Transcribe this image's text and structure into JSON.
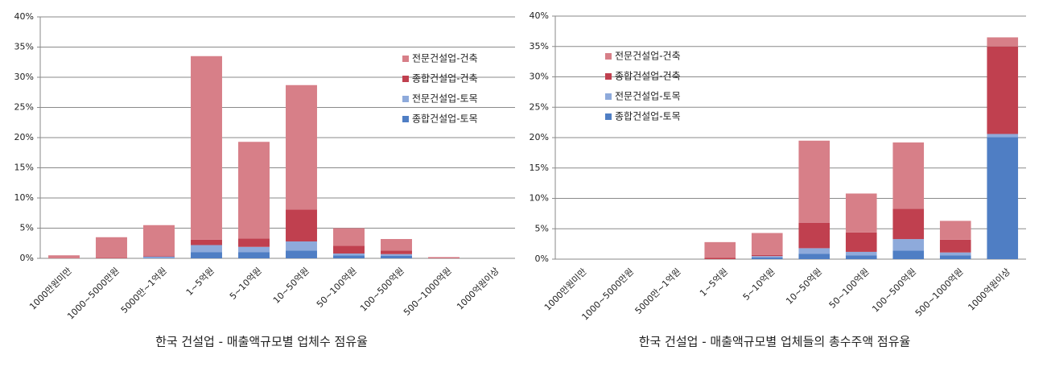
{
  "chart_data": [
    {
      "type": "stacked-bar",
      "title": "한국 건설업 - 매출액규모별 업체수 점유율",
      "categories": [
        "1000만원미만",
        "1000~5000만원",
        "5000만~1억원",
        "1~5억원",
        "5~10억원",
        "10~50억원",
        "50~100억원",
        "100~500억원",
        "500~1000억원",
        "1000억원이상"
      ],
      "series": [
        {
          "name": "종합건설업-토목",
          "color": "#4f7ec4",
          "values": [
            0,
            0,
            0.1,
            1.0,
            1.0,
            1.3,
            0.5,
            0.4,
            0,
            0
          ]
        },
        {
          "name": "전문건설업-토목",
          "color": "#8eaadb",
          "values": [
            0,
            0,
            0.2,
            1.2,
            0.9,
            1.5,
            0.3,
            0.3,
            0,
            0
          ]
        },
        {
          "name": "종합건설업-건축",
          "color": "#c0404f",
          "values": [
            0,
            0.1,
            0.1,
            0.9,
            1.4,
            5.3,
            1.3,
            0.6,
            0.1,
            0
          ]
        },
        {
          "name": "전문건설업-건축",
          "color": "#d77f88",
          "values": [
            0.5,
            3.4,
            5.1,
            30.4,
            16.0,
            20.6,
            2.9,
            1.9,
            0.1,
            0
          ]
        }
      ],
      "ylim": [
        0,
        40
      ],
      "yticks": [
        {
          "value": 0,
          "label": "0%"
        },
        {
          "value": 5,
          "label": "5%"
        },
        {
          "value": 10,
          "label": "10%"
        },
        {
          "value": 15,
          "label": "15%"
        },
        {
          "value": 20,
          "label": "20%"
        },
        {
          "value": 25,
          "label": "25%"
        },
        {
          "value": 30,
          "label": "30%"
        },
        {
          "value": 35,
          "label": "35%"
        },
        {
          "value": 40,
          "label": "40%"
        }
      ],
      "grid": true,
      "legend": "upper right"
    },
    {
      "type": "stacked-bar",
      "title": "한국 건설업 - 매출액규모별 업체들의 총수주액 점유율",
      "categories": [
        "1000만원미만",
        "1000~5000만원",
        "5000만~1억원",
        "1~5억원",
        "5~10억원",
        "10~50억원",
        "50~100억원",
        "100~500억원",
        "500~1000억원",
        "1000억원이상"
      ],
      "series": [
        {
          "name": "종합건설업-토목",
          "color": "#4f7ec4",
          "values": [
            0,
            0,
            0,
            0,
            0.3,
            0.9,
            0.6,
            1.4,
            0.6,
            20.1
          ]
        },
        {
          "name": "전문건설업-토목",
          "color": "#8eaadb",
          "values": [
            0,
            0,
            0,
            0,
            0.2,
            0.9,
            0.6,
            1.9,
            0.5,
            0.5
          ]
        },
        {
          "name": "종합건설업-건축",
          "color": "#c0404f",
          "values": [
            0,
            0,
            0,
            0.2,
            0.2,
            4.2,
            3.2,
            5.0,
            2.1,
            14.4
          ]
        },
        {
          "name": "전문건설업-건축",
          "color": "#d77f88",
          "values": [
            0,
            0,
            0,
            2.6,
            3.6,
            13.5,
            6.4,
            10.9,
            3.1,
            1.5
          ]
        }
      ],
      "ylim": [
        0,
        40
      ],
      "yticks": [
        {
          "value": 0,
          "label": "0%"
        },
        {
          "value": 5,
          "label": "5%"
        },
        {
          "value": 10,
          "label": "10%"
        },
        {
          "value": 15,
          "label": "15%"
        },
        {
          "value": 20,
          "label": "20%"
        },
        {
          "value": 25,
          "label": "25%"
        },
        {
          "value": 30,
          "label": "30%"
        },
        {
          "value": 35,
          "label": "35%"
        },
        {
          "value": 40,
          "label": "40%"
        }
      ],
      "grid": true,
      "legend": "upper left"
    }
  ]
}
